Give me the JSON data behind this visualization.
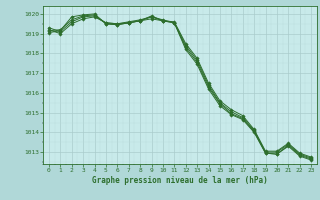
{
  "title": "Graphe pression niveau de la mer (hPa)",
  "xlabel": "Graphe pression niveau de la mer (hPa)",
  "background_color": "#b0d8d8",
  "plot_bg_color": "#c8eaea",
  "grid_major_color": "#aacccc",
  "grid_minor_color": "#bbdddd",
  "line_color": "#2d6e2d",
  "ylim": [
    1012.4,
    1020.4
  ],
  "yticks": [
    1013,
    1014,
    1015,
    1016,
    1017,
    1018,
    1019,
    1020
  ],
  "xlim": [
    -0.5,
    23.5
  ],
  "xticks": [
    0,
    1,
    2,
    3,
    4,
    5,
    6,
    7,
    8,
    9,
    10,
    11,
    12,
    13,
    14,
    15,
    16,
    17,
    18,
    19,
    20,
    21,
    22,
    23
  ],
  "lines": [
    [
      1019.2,
      1019.0,
      1019.5,
      1019.75,
      1019.85,
      1019.55,
      1019.5,
      1019.55,
      1019.65,
      1019.75,
      1019.65,
      1019.55,
      1018.4,
      1017.65,
      1016.4,
      1015.5,
      1015.05,
      1014.75,
      1014.1,
      1013.0,
      1013.0,
      1013.4,
      1012.9,
      1012.7
    ],
    [
      1019.3,
      1019.1,
      1019.6,
      1019.85,
      1019.9,
      1019.55,
      1019.5,
      1019.6,
      1019.7,
      1019.85,
      1019.7,
      1019.55,
      1018.3,
      1017.55,
      1016.3,
      1015.45,
      1014.95,
      1014.7,
      1014.05,
      1012.95,
      1012.9,
      1013.35,
      1012.85,
      1012.65
    ],
    [
      1019.05,
      1019.15,
      1019.85,
      1019.95,
      1020.0,
      1019.5,
      1019.45,
      1019.55,
      1019.65,
      1019.9,
      1019.65,
      1019.6,
      1018.5,
      1017.75,
      1016.5,
      1015.6,
      1015.15,
      1014.85,
      1014.15,
      1013.05,
      1013.05,
      1013.45,
      1012.95,
      1012.75
    ],
    [
      1019.15,
      1019.2,
      1019.7,
      1019.9,
      1019.95,
      1019.5,
      1019.45,
      1019.55,
      1019.65,
      1019.85,
      1019.65,
      1019.55,
      1018.2,
      1017.45,
      1016.2,
      1015.35,
      1014.9,
      1014.65,
      1014.0,
      1012.95,
      1012.9,
      1013.3,
      1012.8,
      1012.6
    ]
  ]
}
